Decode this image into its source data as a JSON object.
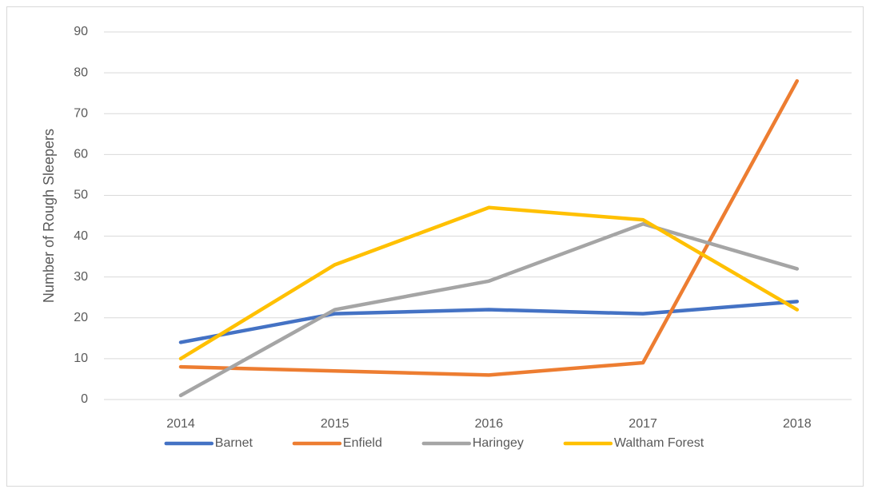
{
  "chart_data": {
    "type": "line",
    "y_label": "Number of Rough Sleepers",
    "categories": [
      "2014",
      "2015",
      "2016",
      "2017",
      "2018"
    ],
    "series": [
      {
        "name": "Barnet",
        "color": "#4472c4",
        "values": [
          14,
          21,
          22,
          21,
          24
        ]
      },
      {
        "name": "Enfield",
        "color": "#ed7d31",
        "values": [
          8,
          7,
          6,
          9,
          78
        ]
      },
      {
        "name": "Haringey",
        "color": "#a5a5a5",
        "values": [
          1,
          22,
          29,
          43,
          32
        ]
      },
      {
        "name": "Waltham Forest",
        "color": "#ffc000",
        "values": [
          10,
          33,
          47,
          44,
          22
        ]
      }
    ],
    "ylim": [
      0,
      90
    ],
    "yticks": [
      0,
      10,
      20,
      30,
      40,
      50,
      60,
      70,
      80,
      90
    ],
    "grid": true,
    "legend": "bottom"
  }
}
